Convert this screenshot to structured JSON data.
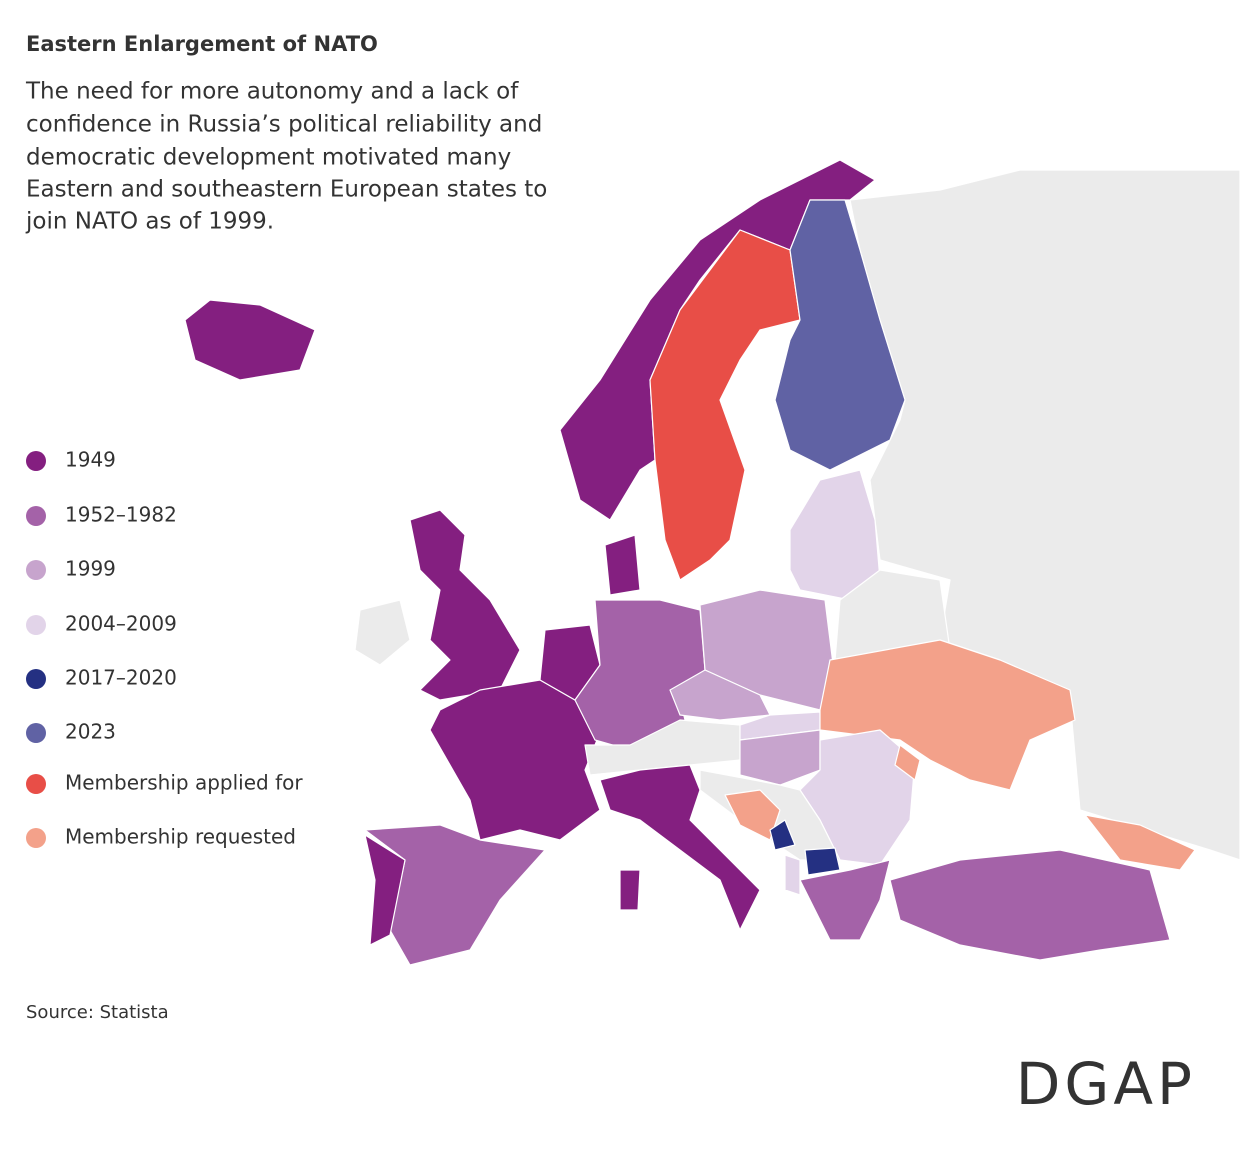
{
  "title": "Eastern Enlargement of NATO",
  "subtitle": [
    "The need for more autonomy and a lack of",
    "confidence in Russia’s political reliability and",
    "democratic development motivated many",
    "Eastern and southeastern European states to",
    "join NATO as of 1999."
  ],
  "legend": [
    {
      "label": "1949",
      "color": "#841f80"
    },
    {
      "label": "1952–1982",
      "color": "#a462a8"
    },
    {
      "label": "1999",
      "color": "#c7a4cd"
    },
    {
      "label": "2004–2009",
      "color": "#e2d4e9"
    },
    {
      "label": "2017–2020",
      "color": "#243082"
    },
    {
      "label": "2023",
      "color": "#6062a4"
    },
    {
      "label": "Membership applied for",
      "color": "#e84e47"
    },
    {
      "label": "Membership requested",
      "color": "#f3a18a"
    }
  ],
  "source": "Source: Statista",
  "logo": "DGAP"
}
